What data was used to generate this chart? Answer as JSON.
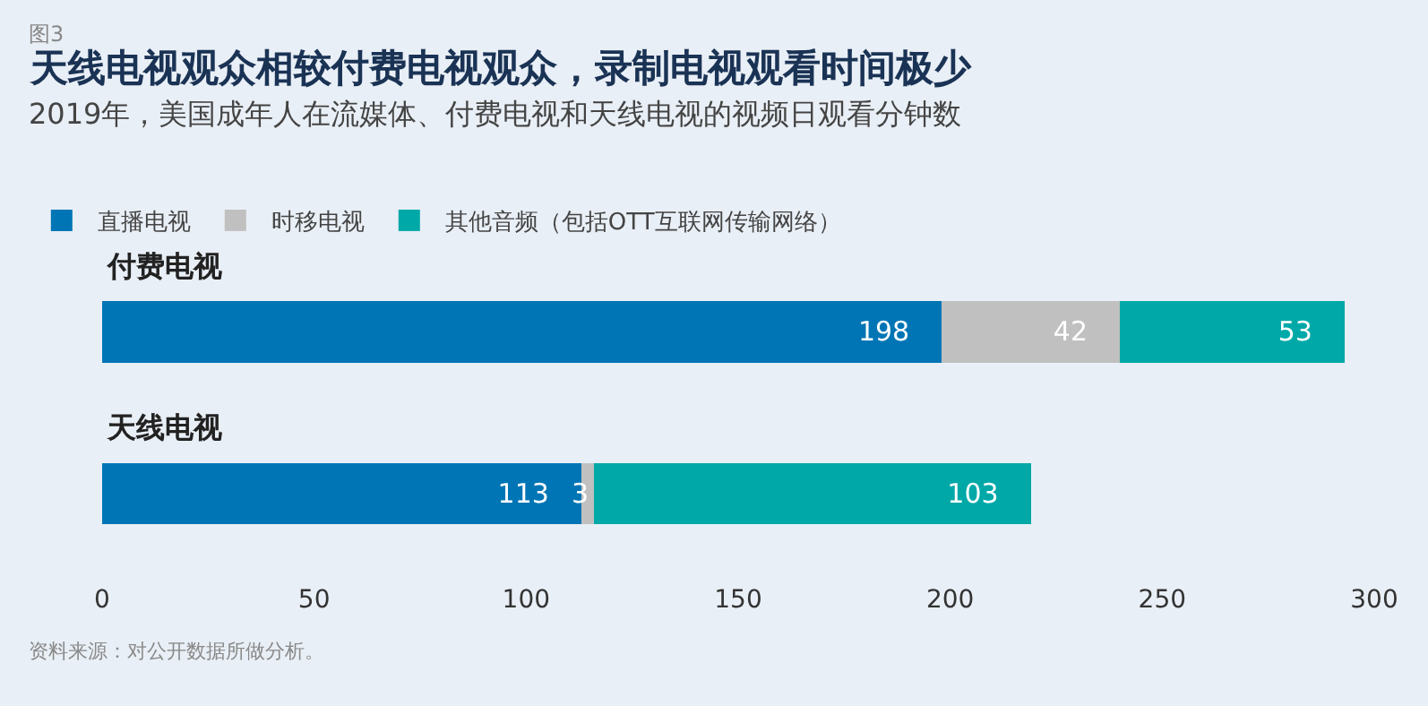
{
  "chart_data": {
    "type": "bar",
    "orientation": "horizontal",
    "stacked": true,
    "title": "天线电视观众相较付费电视观众，录制电视观看时间极少",
    "subtitle": "2019年，美国成年人在流媒体、付费电视和天线电视的视频日观看分钟数",
    "annotations": [
      "图3",
      "资料来源：对公开数据所做分析。"
    ],
    "categories": [
      "付费电视",
      "天线电视"
    ],
    "series": [
      {
        "name": "直播电视",
        "color": "#0075b5",
        "values": [
          198,
          113
        ]
      },
      {
        "name": "时移电视",
        "color": "#c0c0c0",
        "values": [
          42,
          3
        ]
      },
      {
        "name": "其他音频（包括OTT互联网传输网络）",
        "color": "#00a8a8",
        "values": [
          53,
          103
        ]
      }
    ],
    "xlim": [
      0,
      300
    ],
    "xticks": [
      0,
      50,
      100,
      150,
      200,
      250,
      300
    ],
    "data_labels": true,
    "grid": false,
    "legend": "top left"
  }
}
